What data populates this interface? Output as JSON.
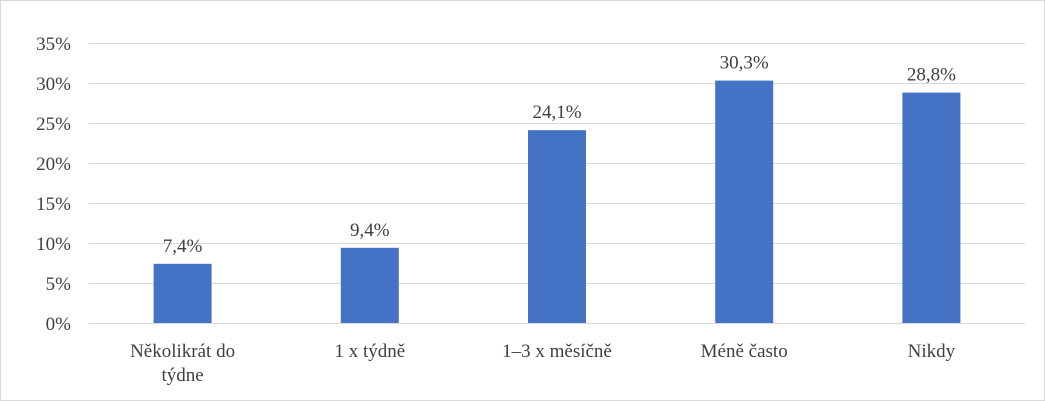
{
  "chart_data": {
    "type": "bar",
    "title": "",
    "xlabel": "",
    "ylabel": "",
    "categories": [
      [
        "Několikrát do",
        "týdne"
      ],
      [
        "1 x týdně"
      ],
      [
        "1–3 x měsíčně"
      ],
      [
        "Méně často"
      ],
      [
        "Nikdy"
      ]
    ],
    "values": [
      7.4,
      9.4,
      24.1,
      30.3,
      28.8
    ],
    "data_labels": [
      "7,4%",
      "9,4%",
      "24,1%",
      "30,3%",
      "28,8%"
    ],
    "ylim": [
      0,
      35
    ],
    "yticks": [
      0,
      5,
      10,
      15,
      20,
      25,
      30,
      35
    ],
    "ytick_labels": [
      "0%",
      "5%",
      "10%",
      "15%",
      "20%",
      "25%",
      "30%",
      "35%"
    ],
    "grid": true,
    "legend": "none",
    "bar_color": "#4472c4",
    "grid_color": "#d9d9d9",
    "text_color": "#404040"
  }
}
